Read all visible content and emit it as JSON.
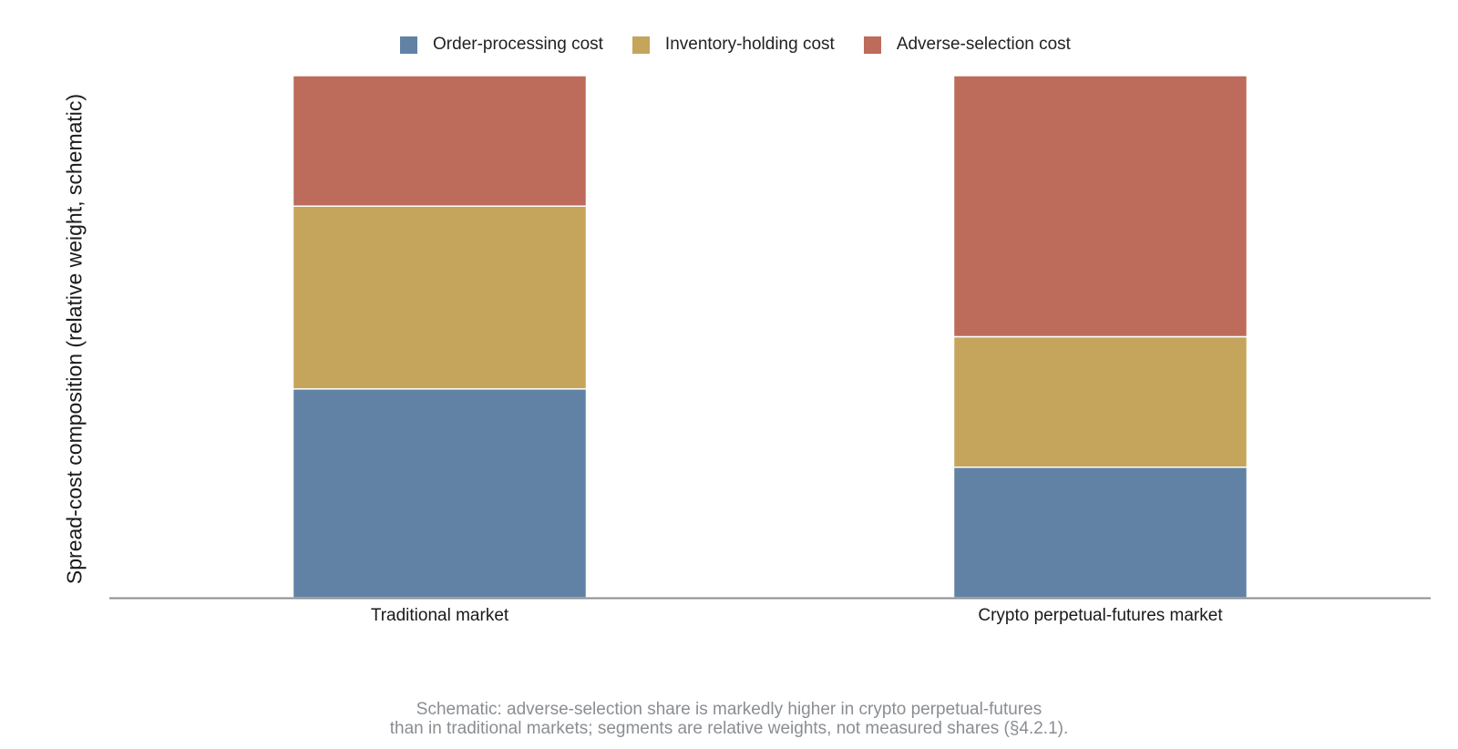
{
  "chart_data": {
    "type": "bar",
    "stacked": true,
    "categories": [
      "Traditional market",
      "Crypto perpetual-futures market"
    ],
    "series": [
      {
        "name": "Order-processing cost",
        "values": [
          40,
          25
        ],
        "color": "#6182a5"
      },
      {
        "name": "Inventory-holding cost",
        "values": [
          35,
          25
        ],
        "color": "#c4a55b"
      },
      {
        "name": "Adverse-selection cost",
        "values": [
          25,
          50
        ],
        "color": "#bd6b5b"
      }
    ],
    "ylabel": "Spread-cost composition (relative weight, schematic)",
    "xlabel": "",
    "ylim": [
      0,
      100
    ],
    "grid": false,
    "legend_position": "top-center",
    "caption_lines": [
      "Schematic: adverse-selection share is markedly higher in crypto perpetual-futures",
      "than in traditional markets; segments are relative weights, not measured shares (§4.2.1)."
    ]
  }
}
